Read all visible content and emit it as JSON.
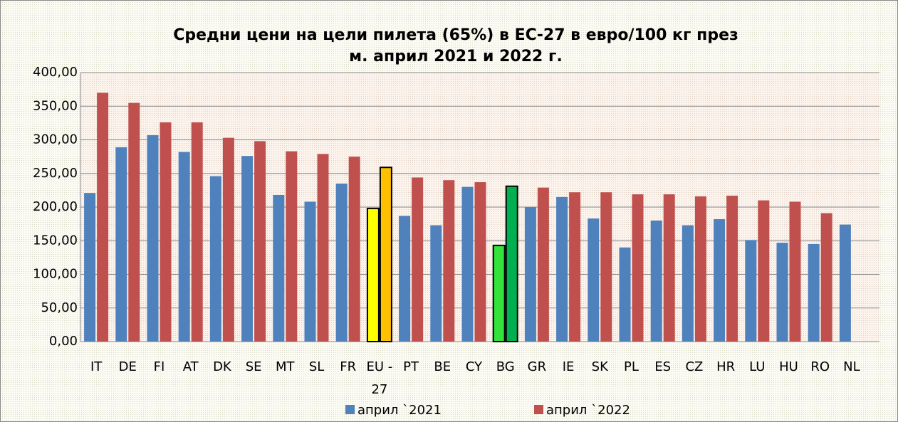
{
  "chart_data": {
    "type": "bar",
    "title": "Средни цени на цели пилета (65%) в ЕС-27 в евро/100 кг през",
    "subtitle": "м. април 2021 и 2022 г.",
    "categories": [
      "IT",
      "DE",
      "FI",
      "AT",
      "DK",
      "SE",
      "MT",
      "SL",
      "FR",
      "EU - 27",
      "PT",
      "BE",
      "CY",
      "BG",
      "GR",
      "IE",
      "SK",
      "PL",
      "ES",
      "CZ",
      "HR",
      "LU",
      "HU",
      "RO",
      "NL"
    ],
    "series": [
      {
        "name": "април `2021",
        "color": "#4f81bd",
        "values": [
          221,
          289,
          307,
          282,
          246,
          276,
          218,
          208,
          235,
          198,
          187,
          173,
          230,
          143,
          200,
          215,
          183,
          140,
          180,
          173,
          182,
          151,
          147,
          145,
          174
        ],
        "colors": [
          "#4f81bd",
          "#4f81bd",
          "#4f81bd",
          "#4f81bd",
          "#4f81bd",
          "#4f81bd",
          "#4f81bd",
          "#4f81bd",
          "#4f81bd",
          "#ffff00",
          "#4f81bd",
          "#4f81bd",
          "#4f81bd",
          "#33e33a",
          "#4f81bd",
          "#4f81bd",
          "#4f81bd",
          "#4f81bd",
          "#4f81bd",
          "#4f81bd",
          "#4f81bd",
          "#4f81bd",
          "#4f81bd",
          "#4f81bd",
          "#4f81bd"
        ]
      },
      {
        "name": "април `2022",
        "color": "#c0504d",
        "values": [
          370,
          355,
          326,
          326,
          303,
          298,
          283,
          279,
          275,
          259,
          244,
          240,
          237,
          231,
          229,
          222,
          222,
          219,
          219,
          216,
          217,
          210,
          208,
          191,
          null
        ],
        "colors": [
          "#c0504d",
          "#c0504d",
          "#c0504d",
          "#c0504d",
          "#c0504d",
          "#c0504d",
          "#c0504d",
          "#c0504d",
          "#c0504d",
          "#ffc000",
          "#c0504d",
          "#c0504d",
          "#c0504d",
          "#00b050",
          "#c0504d",
          "#c0504d",
          "#c0504d",
          "#c0504d",
          "#c0504d",
          "#c0504d",
          "#c0504d",
          "#c0504d",
          "#c0504d",
          "#c0504d",
          "#c0504d"
        ]
      }
    ],
    "ylim": [
      0,
      400
    ],
    "yticks": [
      {
        "value": 0,
        "label": "0,00"
      },
      {
        "value": 50,
        "label": "50,00"
      },
      {
        "value": 100,
        "label": "100,00"
      },
      {
        "value": 150,
        "label": "150,00"
      },
      {
        "value": 200,
        "label": "200,00"
      },
      {
        "value": 250,
        "label": "250,00"
      },
      {
        "value": 300,
        "label": "300,00"
      },
      {
        "value": 350,
        "label": "350,00"
      },
      {
        "value": 400,
        "label": "400,00"
      }
    ],
    "grid": true,
    "legend": "bottom"
  }
}
